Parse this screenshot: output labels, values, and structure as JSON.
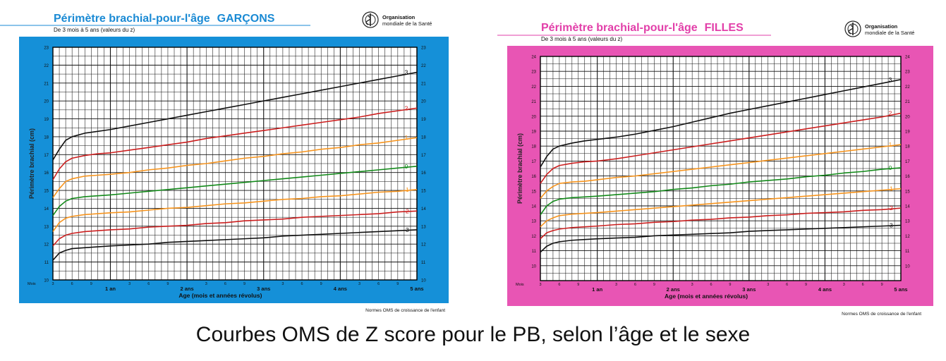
{
  "caption": "Courbes OMS de Z score pour le PB, selon l’âge et le sexe",
  "chart_data": [
    {
      "type": "line",
      "title_main": "Périmètre brachial-pour-l'âge",
      "title_sex": "GARÇONS",
      "subtitle": "De 3 mois à 5 ans (valeurs du z)",
      "org_line1": "Organisation",
      "org_line2": "mondiale de la Santé",
      "ylabel": "Périmètre brachial (cm)",
      "xlabel": "Age (mois et années révolus)",
      "mois_label": "Mois",
      "footer": "Normes OMS de croissance de l'enfant",
      "colors": {
        "panel": "#1590d8",
        "title": "#1a8ad4",
        "plot": "#ffffff",
        "grid": "#111111"
      },
      "xlim": [
        3,
        60
      ],
      "ylim": [
        10,
        23
      ],
      "yticks": [
        10,
        11,
        12,
        13,
        14,
        15,
        16,
        17,
        18,
        19,
        20,
        21,
        22,
        23
      ],
      "xticks_months": [
        {
          "x": 3,
          "label": "3"
        },
        {
          "x": 6,
          "label": "6"
        },
        {
          "x": 9,
          "label": "9"
        },
        {
          "x": 15,
          "label": "3"
        },
        {
          "x": 18,
          "label": "6"
        },
        {
          "x": 21,
          "label": "9"
        },
        {
          "x": 27,
          "label": "3"
        },
        {
          "x": 30,
          "label": "6"
        },
        {
          "x": 33,
          "label": "9"
        },
        {
          "x": 39,
          "label": "3"
        },
        {
          "x": 42,
          "label": "6"
        },
        {
          "x": 45,
          "label": "9"
        },
        {
          "x": 51,
          "label": "3"
        },
        {
          "x": 54,
          "label": "6"
        },
        {
          "x": 57,
          "label": "9"
        }
      ],
      "xticks_years": [
        {
          "x": 12,
          "label": "1 an"
        },
        {
          "x": 24,
          "label": "2 ans"
        },
        {
          "x": 36,
          "label": "3 ans"
        },
        {
          "x": 48,
          "label": "4 ans"
        },
        {
          "x": 60,
          "label": "5 ans"
        }
      ],
      "x": [
        3,
        4,
        5,
        6,
        8,
        10,
        12,
        15,
        18,
        21,
        24,
        27,
        30,
        33,
        36,
        39,
        42,
        45,
        48,
        51,
        54,
        57,
        60
      ],
      "series": [
        {
          "name": "3",
          "color": "#111111",
          "values": [
            16.7,
            17.3,
            17.8,
            18.0,
            18.2,
            18.3,
            18.4,
            18.6,
            18.8,
            19.0,
            19.2,
            19.4,
            19.6,
            19.8,
            20.0,
            20.2,
            20.4,
            20.6,
            20.8,
            21.0,
            21.2,
            21.4,
            21.6
          ]
        },
        {
          "name": "2",
          "color": "#cc1f1f",
          "values": [
            15.6,
            16.2,
            16.6,
            16.8,
            16.95,
            17.05,
            17.1,
            17.25,
            17.4,
            17.55,
            17.7,
            17.9,
            18.05,
            18.2,
            18.35,
            18.5,
            18.65,
            18.8,
            18.95,
            19.1,
            19.3,
            19.45,
            19.6
          ]
        },
        {
          "name": "1",
          "color": "#f7941d",
          "values": [
            14.6,
            15.1,
            15.5,
            15.65,
            15.8,
            15.85,
            15.9,
            16.0,
            16.15,
            16.25,
            16.4,
            16.5,
            16.65,
            16.8,
            16.9,
            17.05,
            17.15,
            17.3,
            17.4,
            17.55,
            17.65,
            17.8,
            17.95
          ]
        },
        {
          "name": "0",
          "color": "#138a1a",
          "values": [
            13.6,
            14.1,
            14.4,
            14.55,
            14.65,
            14.7,
            14.75,
            14.85,
            14.95,
            15.05,
            15.15,
            15.25,
            15.35,
            15.45,
            15.55,
            15.65,
            15.75,
            15.85,
            15.95,
            16.05,
            16.15,
            16.25,
            16.35
          ]
        },
        {
          "name": "-1",
          "color": "#f7941d",
          "values": [
            12.7,
            13.2,
            13.45,
            13.55,
            13.65,
            13.7,
            13.75,
            13.8,
            13.9,
            14.0,
            14.05,
            14.15,
            14.25,
            14.3,
            14.4,
            14.5,
            14.55,
            14.65,
            14.7,
            14.8,
            14.9,
            14.95,
            15.05
          ]
        },
        {
          "name": "-2",
          "color": "#cc1f1f",
          "values": [
            11.9,
            12.3,
            12.5,
            12.6,
            12.7,
            12.75,
            12.8,
            12.85,
            12.95,
            13.0,
            13.05,
            13.15,
            13.2,
            13.3,
            13.35,
            13.4,
            13.5,
            13.55,
            13.6,
            13.65,
            13.7,
            13.8,
            13.85
          ]
        },
        {
          "name": "-3",
          "color": "#111111",
          "values": [
            11.1,
            11.5,
            11.65,
            11.75,
            11.8,
            11.85,
            11.9,
            11.95,
            12.0,
            12.1,
            12.15,
            12.2,
            12.25,
            12.3,
            12.35,
            12.45,
            12.5,
            12.55,
            12.6,
            12.65,
            12.7,
            12.75,
            12.8
          ]
        }
      ]
    },
    {
      "type": "line",
      "title_main": "Périmètre brachial-pour-l'âge",
      "title_sex": "FILLES",
      "subtitle": "De 3 mois à 5 ans (valeurs du z)",
      "org_line1": "Organisation",
      "org_line2": "mondiale de la Santé",
      "ylabel": "Périmètre brachial (cm)",
      "xlabel": "Age (mois et années révolus)",
      "mois_label": "Mois",
      "footer": "Normes OMS de croissance de l'enfant",
      "colors": {
        "panel": "#e855b4",
        "title": "#e23fa9",
        "plot": "#ffffff",
        "grid": "#111111"
      },
      "xlim": [
        3,
        60
      ],
      "ylim": [
        9,
        24
      ],
      "yticks": [
        10,
        11,
        12,
        13,
        14,
        15,
        16,
        17,
        18,
        19,
        20,
        21,
        22,
        23,
        24
      ],
      "xticks_months": [
        {
          "x": 3,
          "label": "3"
        },
        {
          "x": 6,
          "label": "6"
        },
        {
          "x": 9,
          "label": "9"
        },
        {
          "x": 15,
          "label": "3"
        },
        {
          "x": 18,
          "label": "6"
        },
        {
          "x": 21,
          "label": "9"
        },
        {
          "x": 27,
          "label": "3"
        },
        {
          "x": 30,
          "label": "6"
        },
        {
          "x": 33,
          "label": "9"
        },
        {
          "x": 39,
          "label": "3"
        },
        {
          "x": 42,
          "label": "6"
        },
        {
          "x": 45,
          "label": "9"
        },
        {
          "x": 51,
          "label": "3"
        },
        {
          "x": 54,
          "label": "6"
        },
        {
          "x": 57,
          "label": "9"
        }
      ],
      "xticks_years": [
        {
          "x": 12,
          "label": "1 an"
        },
        {
          "x": 24,
          "label": "2 ans"
        },
        {
          "x": 36,
          "label": "3 ans"
        },
        {
          "x": 48,
          "label": "4 ans"
        },
        {
          "x": 60,
          "label": "5 ans"
        }
      ],
      "x": [
        3,
        4,
        5,
        6,
        8,
        10,
        12,
        15,
        18,
        21,
        24,
        27,
        30,
        33,
        36,
        39,
        42,
        45,
        48,
        51,
        54,
        57,
        60
      ],
      "series": [
        {
          "name": "3",
          "color": "#111111",
          "values": [
            16.6,
            17.3,
            17.8,
            18.0,
            18.2,
            18.35,
            18.45,
            18.6,
            18.8,
            19.05,
            19.3,
            19.6,
            19.9,
            20.2,
            20.45,
            20.7,
            20.95,
            21.2,
            21.45,
            21.7,
            21.95,
            22.2,
            22.45
          ]
        },
        {
          "name": "2",
          "color": "#cc1f1f",
          "values": [
            15.5,
            16.1,
            16.5,
            16.7,
            16.85,
            16.95,
            17.0,
            17.15,
            17.35,
            17.55,
            17.75,
            17.95,
            18.15,
            18.35,
            18.55,
            18.75,
            18.95,
            19.15,
            19.35,
            19.55,
            19.75,
            19.95,
            20.2
          ]
        },
        {
          "name": "1",
          "color": "#f7941d",
          "values": [
            14.5,
            15.0,
            15.3,
            15.5,
            15.6,
            15.65,
            15.75,
            15.9,
            16.0,
            16.15,
            16.3,
            16.45,
            16.6,
            16.75,
            16.9,
            17.05,
            17.2,
            17.35,
            17.5,
            17.65,
            17.8,
            17.95,
            18.1
          ]
        },
        {
          "name": "0",
          "color": "#138a1a",
          "values": [
            13.4,
            14.0,
            14.3,
            14.45,
            14.55,
            14.6,
            14.65,
            14.75,
            14.85,
            14.95,
            15.1,
            15.2,
            15.35,
            15.45,
            15.6,
            15.7,
            15.8,
            15.95,
            16.05,
            16.2,
            16.3,
            16.45,
            16.55
          ]
        },
        {
          "name": "-1",
          "color": "#f7941d",
          "values": [
            12.6,
            13.0,
            13.2,
            13.35,
            13.45,
            13.5,
            13.55,
            13.65,
            13.75,
            13.85,
            13.95,
            14.05,
            14.15,
            14.25,
            14.35,
            14.45,
            14.55,
            14.65,
            14.75,
            14.85,
            14.95,
            15.05,
            15.15
          ]
        },
        {
          "name": "-2",
          "color": "#cc1f1f",
          "values": [
            11.8,
            12.2,
            12.35,
            12.45,
            12.55,
            12.6,
            12.65,
            12.75,
            12.8,
            12.9,
            12.95,
            13.05,
            13.1,
            13.2,
            13.25,
            13.35,
            13.4,
            13.5,
            13.55,
            13.6,
            13.7,
            13.75,
            13.85
          ]
        },
        {
          "name": "-3",
          "color": "#111111",
          "values": [
            10.9,
            11.3,
            11.5,
            11.6,
            11.7,
            11.75,
            11.8,
            11.85,
            11.9,
            12.0,
            12.05,
            12.1,
            12.15,
            12.2,
            12.3,
            12.35,
            12.4,
            12.45,
            12.5,
            12.55,
            12.6,
            12.65,
            12.7
          ]
        }
      ]
    }
  ]
}
